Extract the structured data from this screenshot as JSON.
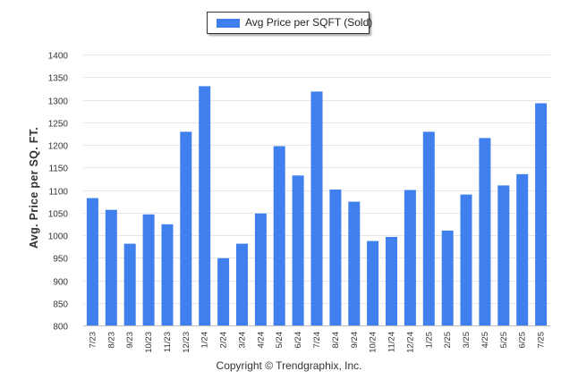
{
  "chart_data": {
    "type": "bar",
    "ylabel": "Avg. Price per SQ. FT.",
    "xlabel": "",
    "ylim": [
      800,
      1400
    ],
    "yticks": [
      800,
      850,
      900,
      950,
      1000,
      1050,
      1100,
      1150,
      1200,
      1250,
      1300,
      1350,
      1400
    ],
    "grid": true,
    "legend_position": "top-center",
    "categories": [
      "7/23",
      "8/23",
      "9/23",
      "10/23",
      "11/23",
      "12/23",
      "1/24",
      "2/24",
      "3/24",
      "4/24",
      "5/24",
      "6/24",
      "7/24",
      "8/24",
      "9/24",
      "10/24",
      "11/24",
      "12/24",
      "1/25",
      "2/25",
      "3/25",
      "4/25",
      "5/25",
      "6/25",
      "7/25"
    ],
    "series": [
      {
        "name": "Avg Price per SQFT (Sold)",
        "color": "#3f7fee",
        "values": [
          1082,
          1056,
          981,
          1046,
          1024,
          1229,
          1330,
          949,
          981,
          1048,
          1197,
          1132,
          1318,
          1101,
          1074,
          987,
          996,
          1100,
          1229,
          1010,
          1090,
          1215,
          1110,
          1135,
          1292
        ]
      }
    ]
  },
  "legend": {
    "label": "Avg Price per SQFT (Sold)",
    "color": "#3f7fee"
  },
  "footer": {
    "copyright": "Copyright © Trendgraphix, Inc."
  }
}
